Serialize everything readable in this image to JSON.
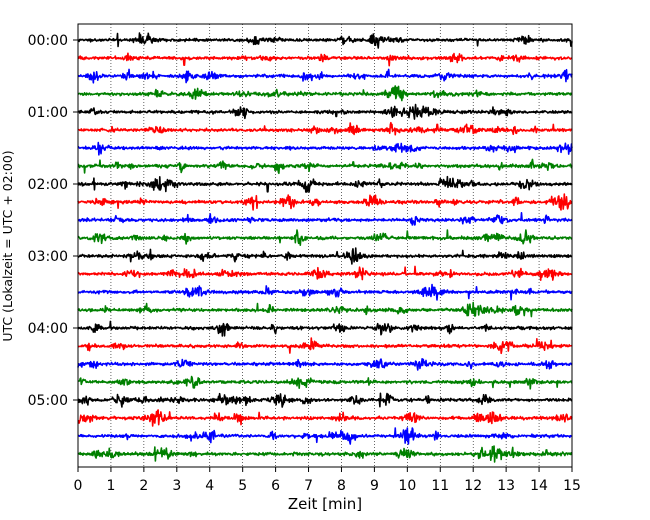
{
  "chart_data": {
    "type": "line",
    "xlabel": "Zeit  [min]",
    "ylabel": "UTC (Lokalzeit = UTC + 02:00)",
    "xlim": [
      0,
      15
    ],
    "x_ticks": [
      "0",
      "1",
      "2",
      "3",
      "4",
      "5",
      "6",
      "7",
      "8",
      "9",
      "10",
      "11",
      "12",
      "13",
      "14",
      "15"
    ],
    "y_tick_labels": [
      "00:00",
      "01:00",
      "02:00",
      "03:00",
      "04:00",
      "05:00"
    ],
    "grid": "vertical dotted lines at each minute",
    "trace_interval_minutes": 15,
    "trace_count": 24,
    "trace_colors": [
      "#000000",
      "#ff0000",
      "#0000ff",
      "#008000"
    ]
  }
}
